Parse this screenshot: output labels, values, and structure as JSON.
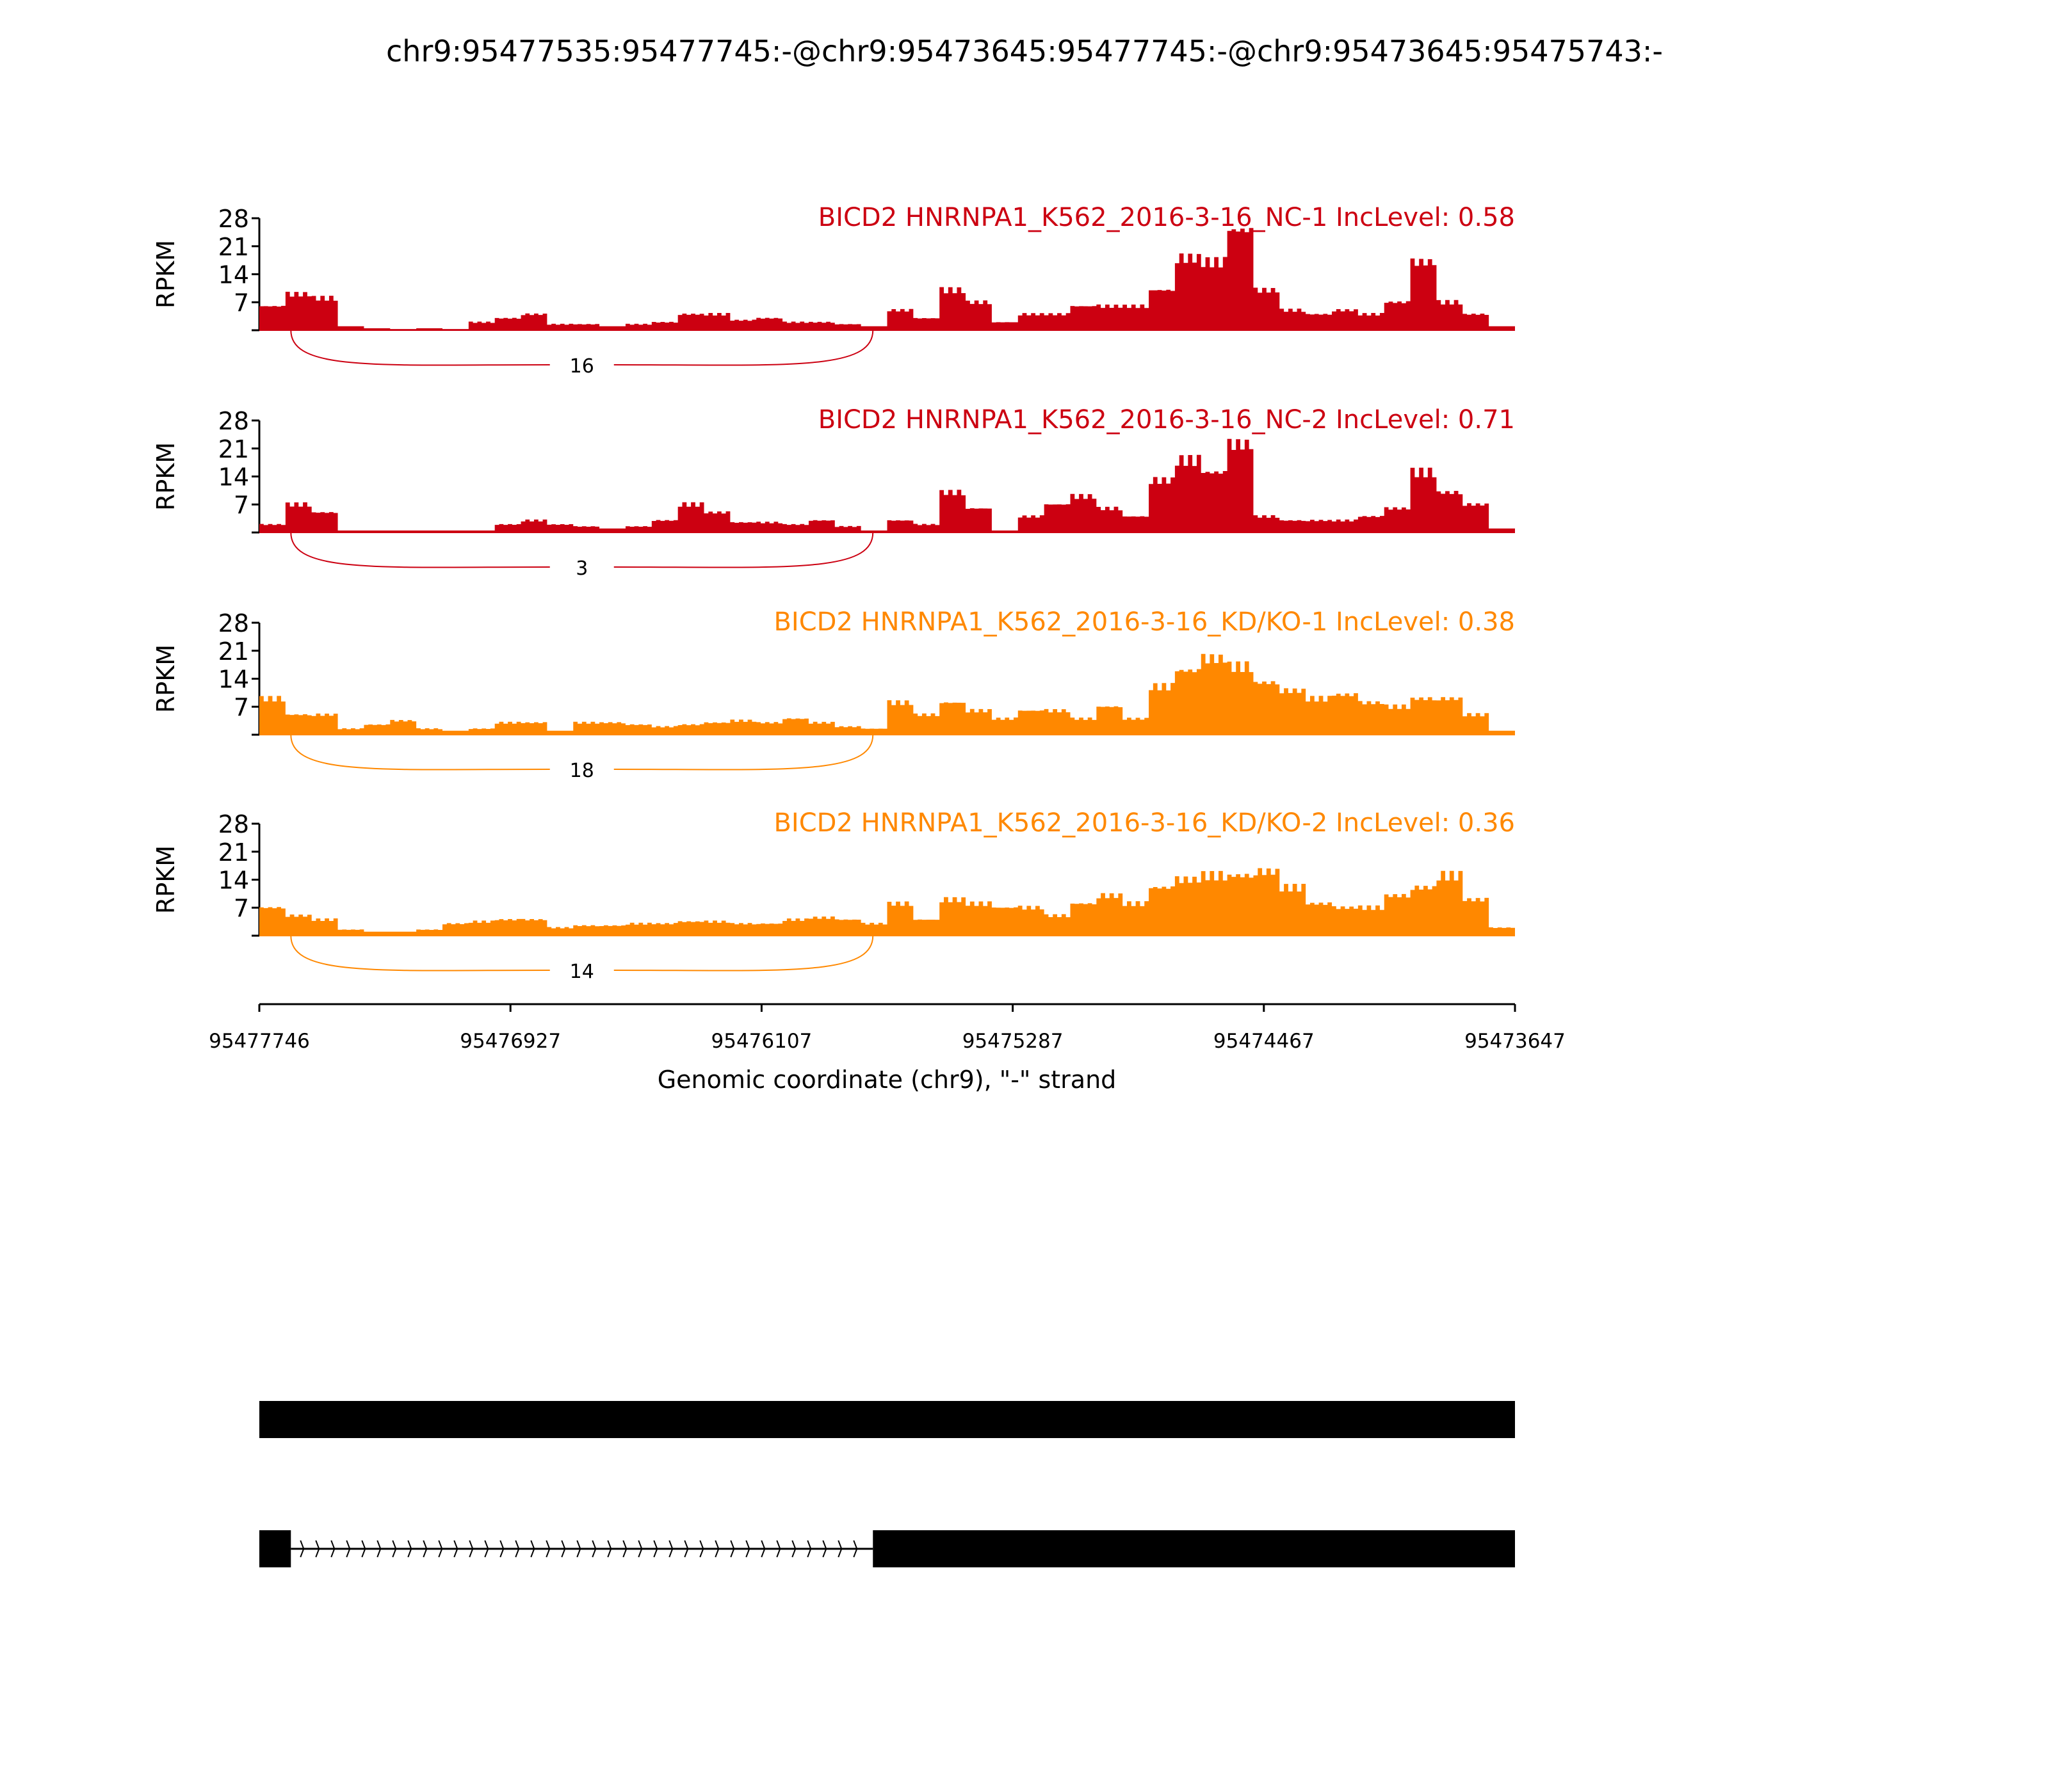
{
  "chart_data": {
    "type": "area",
    "title": "chr9:95477535:95477745:-@chr9:95473645:95477745:-@chr9:95473645:95475743:-",
    "xlabel": "Genomic coordinate (chr9), \"-\" strand",
    "ylabel": "RPKM",
    "xlim": [
      95477746,
      95473647
    ],
    "ylim": [
      0,
      28
    ],
    "x_ticks": [
      "95477746",
      "95476927",
      "95476107",
      "95475287",
      "95474467",
      "95473647"
    ],
    "y_ticks": [
      "7",
      "14",
      "21",
      "28"
    ],
    "junction": {
      "from": 95477643,
      "to": 95475743
    },
    "tracks": [
      {
        "label": "BICD2 HNRNPA1_K562_2016-3-16_NC-1 IncLevel: 0.58",
        "color": "#cc0011",
        "junction_count": "16",
        "values": [
          6,
          9,
          8,
          1,
          0.5,
          0.3,
          0.5,
          0.3,
          2,
          3,
          4,
          1.5,
          1.5,
          1,
          1.5,
          2,
          4,
          4,
          2.5,
          3,
          2,
          2,
          1.5,
          1,
          5,
          3,
          10,
          7,
          2,
          4,
          4,
          6,
          6,
          6,
          10,
          18,
          17,
          25,
          10,
          5,
          4,
          5,
          4,
          7,
          17,
          7,
          4,
          1
        ]
      },
      {
        "label": "BICD2 HNRNPA1_K562_2016-3-16_NC-2 IncLevel: 0.71",
        "color": "#cc0011",
        "junction_count": "3",
        "values": [
          2,
          7,
          5,
          0.5,
          0.5,
          0.5,
          0.5,
          0.5,
          0.5,
          2,
          3,
          2,
          1.5,
          1,
          1.5,
          3,
          7,
          5,
          2.5,
          2.5,
          2,
          3,
          1.5,
          0.5,
          3,
          2,
          10,
          6,
          0.5,
          4,
          7,
          9,
          6,
          4,
          13,
          18,
          15,
          22,
          4,
          3,
          3,
          3,
          4,
          6,
          15,
          10,
          7,
          1
        ]
      },
      {
        "label": "BICD2 HNRNPA1_K562_2016-3-16_KD/KO-1 IncLevel: 0.38",
        "color": "#ff8800",
        "junction_count": "18",
        "values": [
          9,
          5,
          5,
          1.5,
          2.5,
          3.5,
          1.5,
          1,
          1.5,
          3,
          3,
          1,
          3,
          3,
          2.5,
          2,
          2.5,
          3,
          3.5,
          3,
          4,
          3,
          2,
          1.5,
          8,
          5,
          8,
          6,
          4,
          6,
          6,
          4,
          7,
          4,
          12,
          16,
          19,
          17,
          13,
          11,
          9,
          10,
          8,
          7,
          9,
          9,
          5,
          1
        ]
      },
      {
        "label": "BICD2 HNRNPA1_K562_2016-3-16_KD/KO-2 IncLevel: 0.36",
        "color": "#ff8800",
        "junction_count": "14",
        "values": [
          7,
          5,
          4,
          1.5,
          1,
          1,
          1.5,
          3,
          3.5,
          4,
          4,
          2,
          2.5,
          2.5,
          3,
          3,
          3.5,
          3.5,
          3,
          3,
          4,
          4.5,
          4,
          3,
          8,
          4,
          9,
          8,
          7,
          7,
          5,
          8,
          10,
          8,
          12,
          14,
          15,
          15,
          16,
          12,
          8,
          7,
          7,
          10,
          12,
          15,
          9,
          2
        ]
      }
    ],
    "gene_models": [
      {
        "exons": [
          [
            95477746,
            95473647
          ]
        ]
      },
      {
        "exons": [
          [
            95477746,
            95477643
          ],
          [
            95475743,
            95473647
          ]
        ],
        "strand": "-"
      }
    ]
  }
}
